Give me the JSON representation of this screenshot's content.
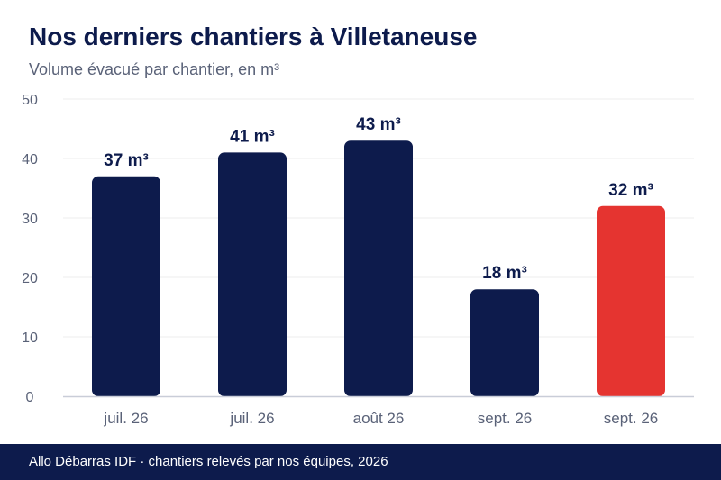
{
  "title": "Nos derniers chantiers à Villetaneuse",
  "subtitle": "Volume évacué par chantier, en m³",
  "footer": "Allo Débarras IDF · chantiers relevés par nos équipes, 2026",
  "chart_data": {
    "type": "bar",
    "title": "Nos derniers chantiers à Villetaneuse",
    "subtitle": "Volume évacué par chantier, en m³",
    "categories": [
      "juil. 26",
      "juil. 26",
      "août 26",
      "sept. 26",
      "sept. 26"
    ],
    "values": [
      37,
      41,
      43,
      18,
      32
    ],
    "value_labels": [
      "37 m³",
      "41 m³",
      "43 m³",
      "18 m³",
      "32 m³"
    ],
    "yticks": [
      "0",
      "10",
      "20",
      "30",
      "40",
      "50"
    ],
    "ylim": [
      0,
      50
    ],
    "grid": true,
    "colors": {
      "bar": "#0d1b4c",
      "highlight": "#e53430",
      "highlight_index": 4,
      "grid": "#ececec",
      "axis": "#c9cdd8",
      "tick_text": "#5a6278",
      "value_text": "#0d1b4c"
    }
  }
}
